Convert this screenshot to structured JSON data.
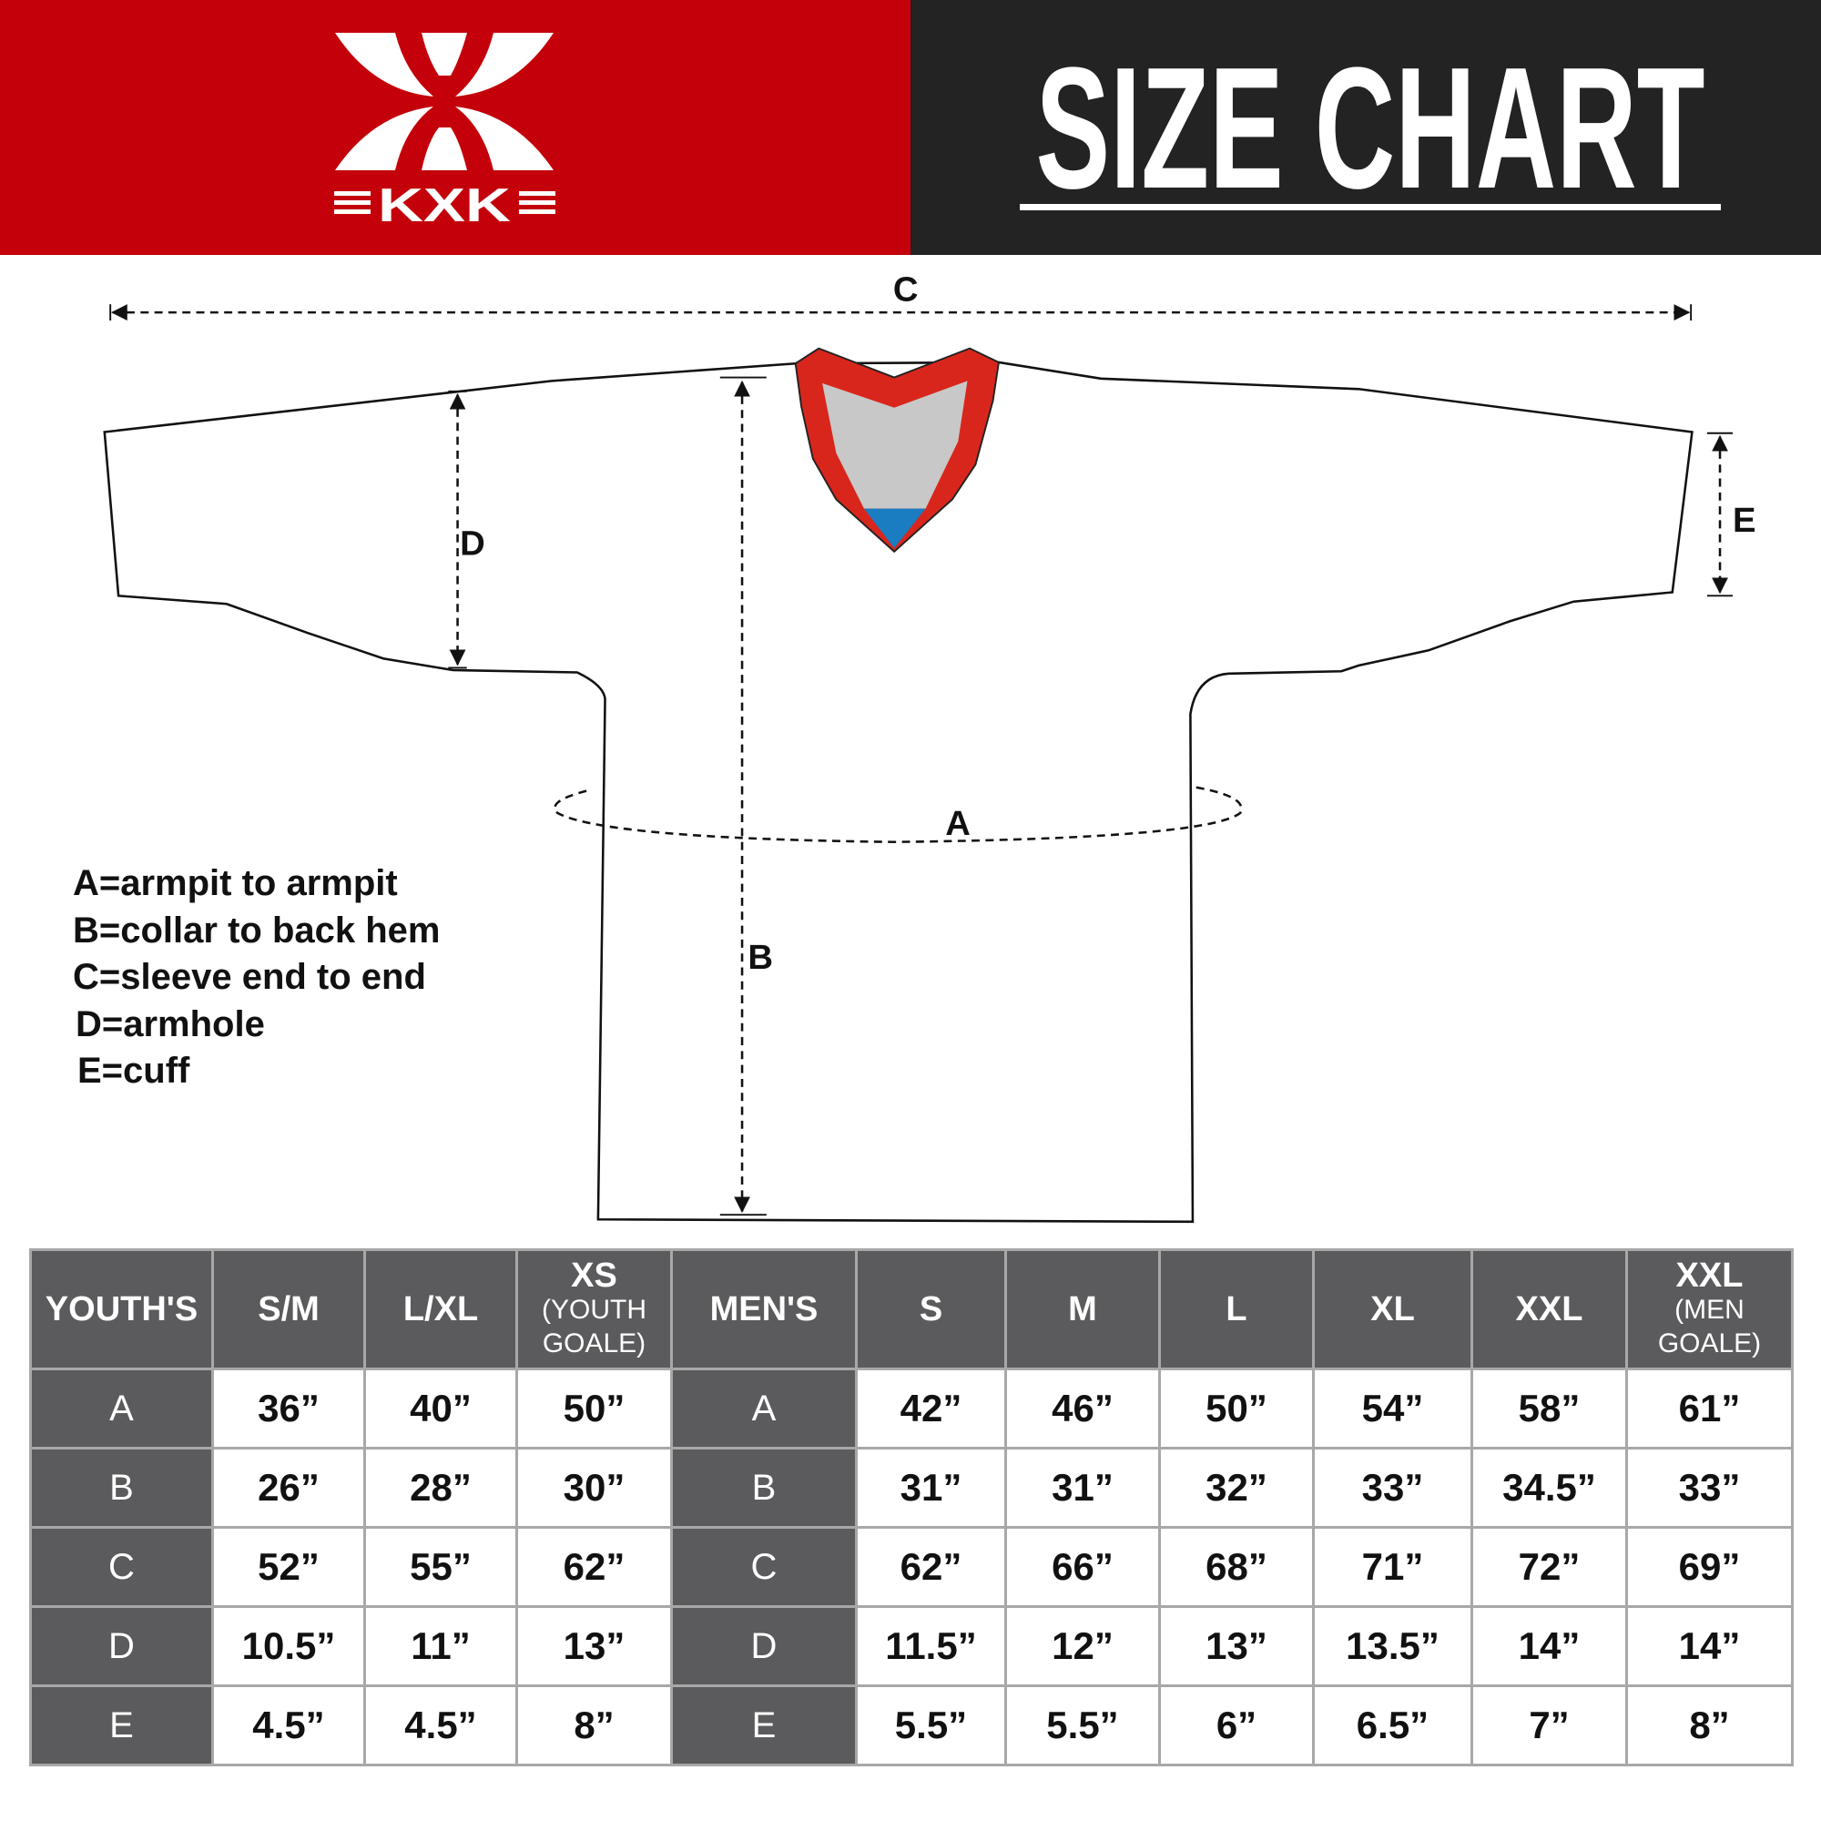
{
  "header": {
    "logo_text": "KXK",
    "title": "SIZE CHART",
    "colors": {
      "brand_red": "#c4000a",
      "dark": "#232323",
      "collar_red": "#d9261c",
      "collar_gray": "#c8c8c8",
      "collar_blue": "#1a7cc1"
    }
  },
  "diagram": {
    "labels": {
      "a": "A",
      "b": "B",
      "c": "C",
      "d": "D",
      "e": "E"
    }
  },
  "legend": [
    "A=armpit to armpit",
    "B=collar to back hem",
    "C=sleeve end to end",
    "D=armhole",
    "E=cuff"
  ],
  "table": {
    "columns": [
      {
        "label": "YOUTH'S",
        "sub": ""
      },
      {
        "label": "S/M",
        "sub": ""
      },
      {
        "label": "L/XL",
        "sub": ""
      },
      {
        "label": "XS",
        "sub": "(YOUTH GOALE)"
      },
      {
        "label": "MEN'S",
        "sub": ""
      },
      {
        "label": "S",
        "sub": ""
      },
      {
        "label": "M",
        "sub": ""
      },
      {
        "label": "L",
        "sub": ""
      },
      {
        "label": "XL",
        "sub": ""
      },
      {
        "label": "XXL",
        "sub": ""
      },
      {
        "label": "XXL",
        "sub": "(MEN GOALE)"
      }
    ],
    "rows": [
      [
        "A",
        "36”",
        "40”",
        "50”",
        "A",
        "42”",
        "46”",
        "50”",
        "54”",
        "58”",
        "61”"
      ],
      [
        "B",
        "26”",
        "28”",
        "30”",
        "B",
        "31”",
        "31”",
        "32”",
        "33”",
        "34.5”",
        "33”"
      ],
      [
        "C",
        "52”",
        "55”",
        "62”",
        "C",
        "62”",
        "66”",
        "68”",
        "71”",
        "72”",
        "69”"
      ],
      [
        "D",
        "10.5”",
        "11”",
        "13”",
        "D",
        "11.5”",
        "12”",
        "13”",
        "13.5”",
        "14”",
        "14”"
      ],
      [
        "E",
        "4.5”",
        "4.5”",
        "8”",
        "E",
        "5.5”",
        "5.5”",
        "6”",
        "6.5”",
        "7”",
        "8”"
      ]
    ]
  }
}
